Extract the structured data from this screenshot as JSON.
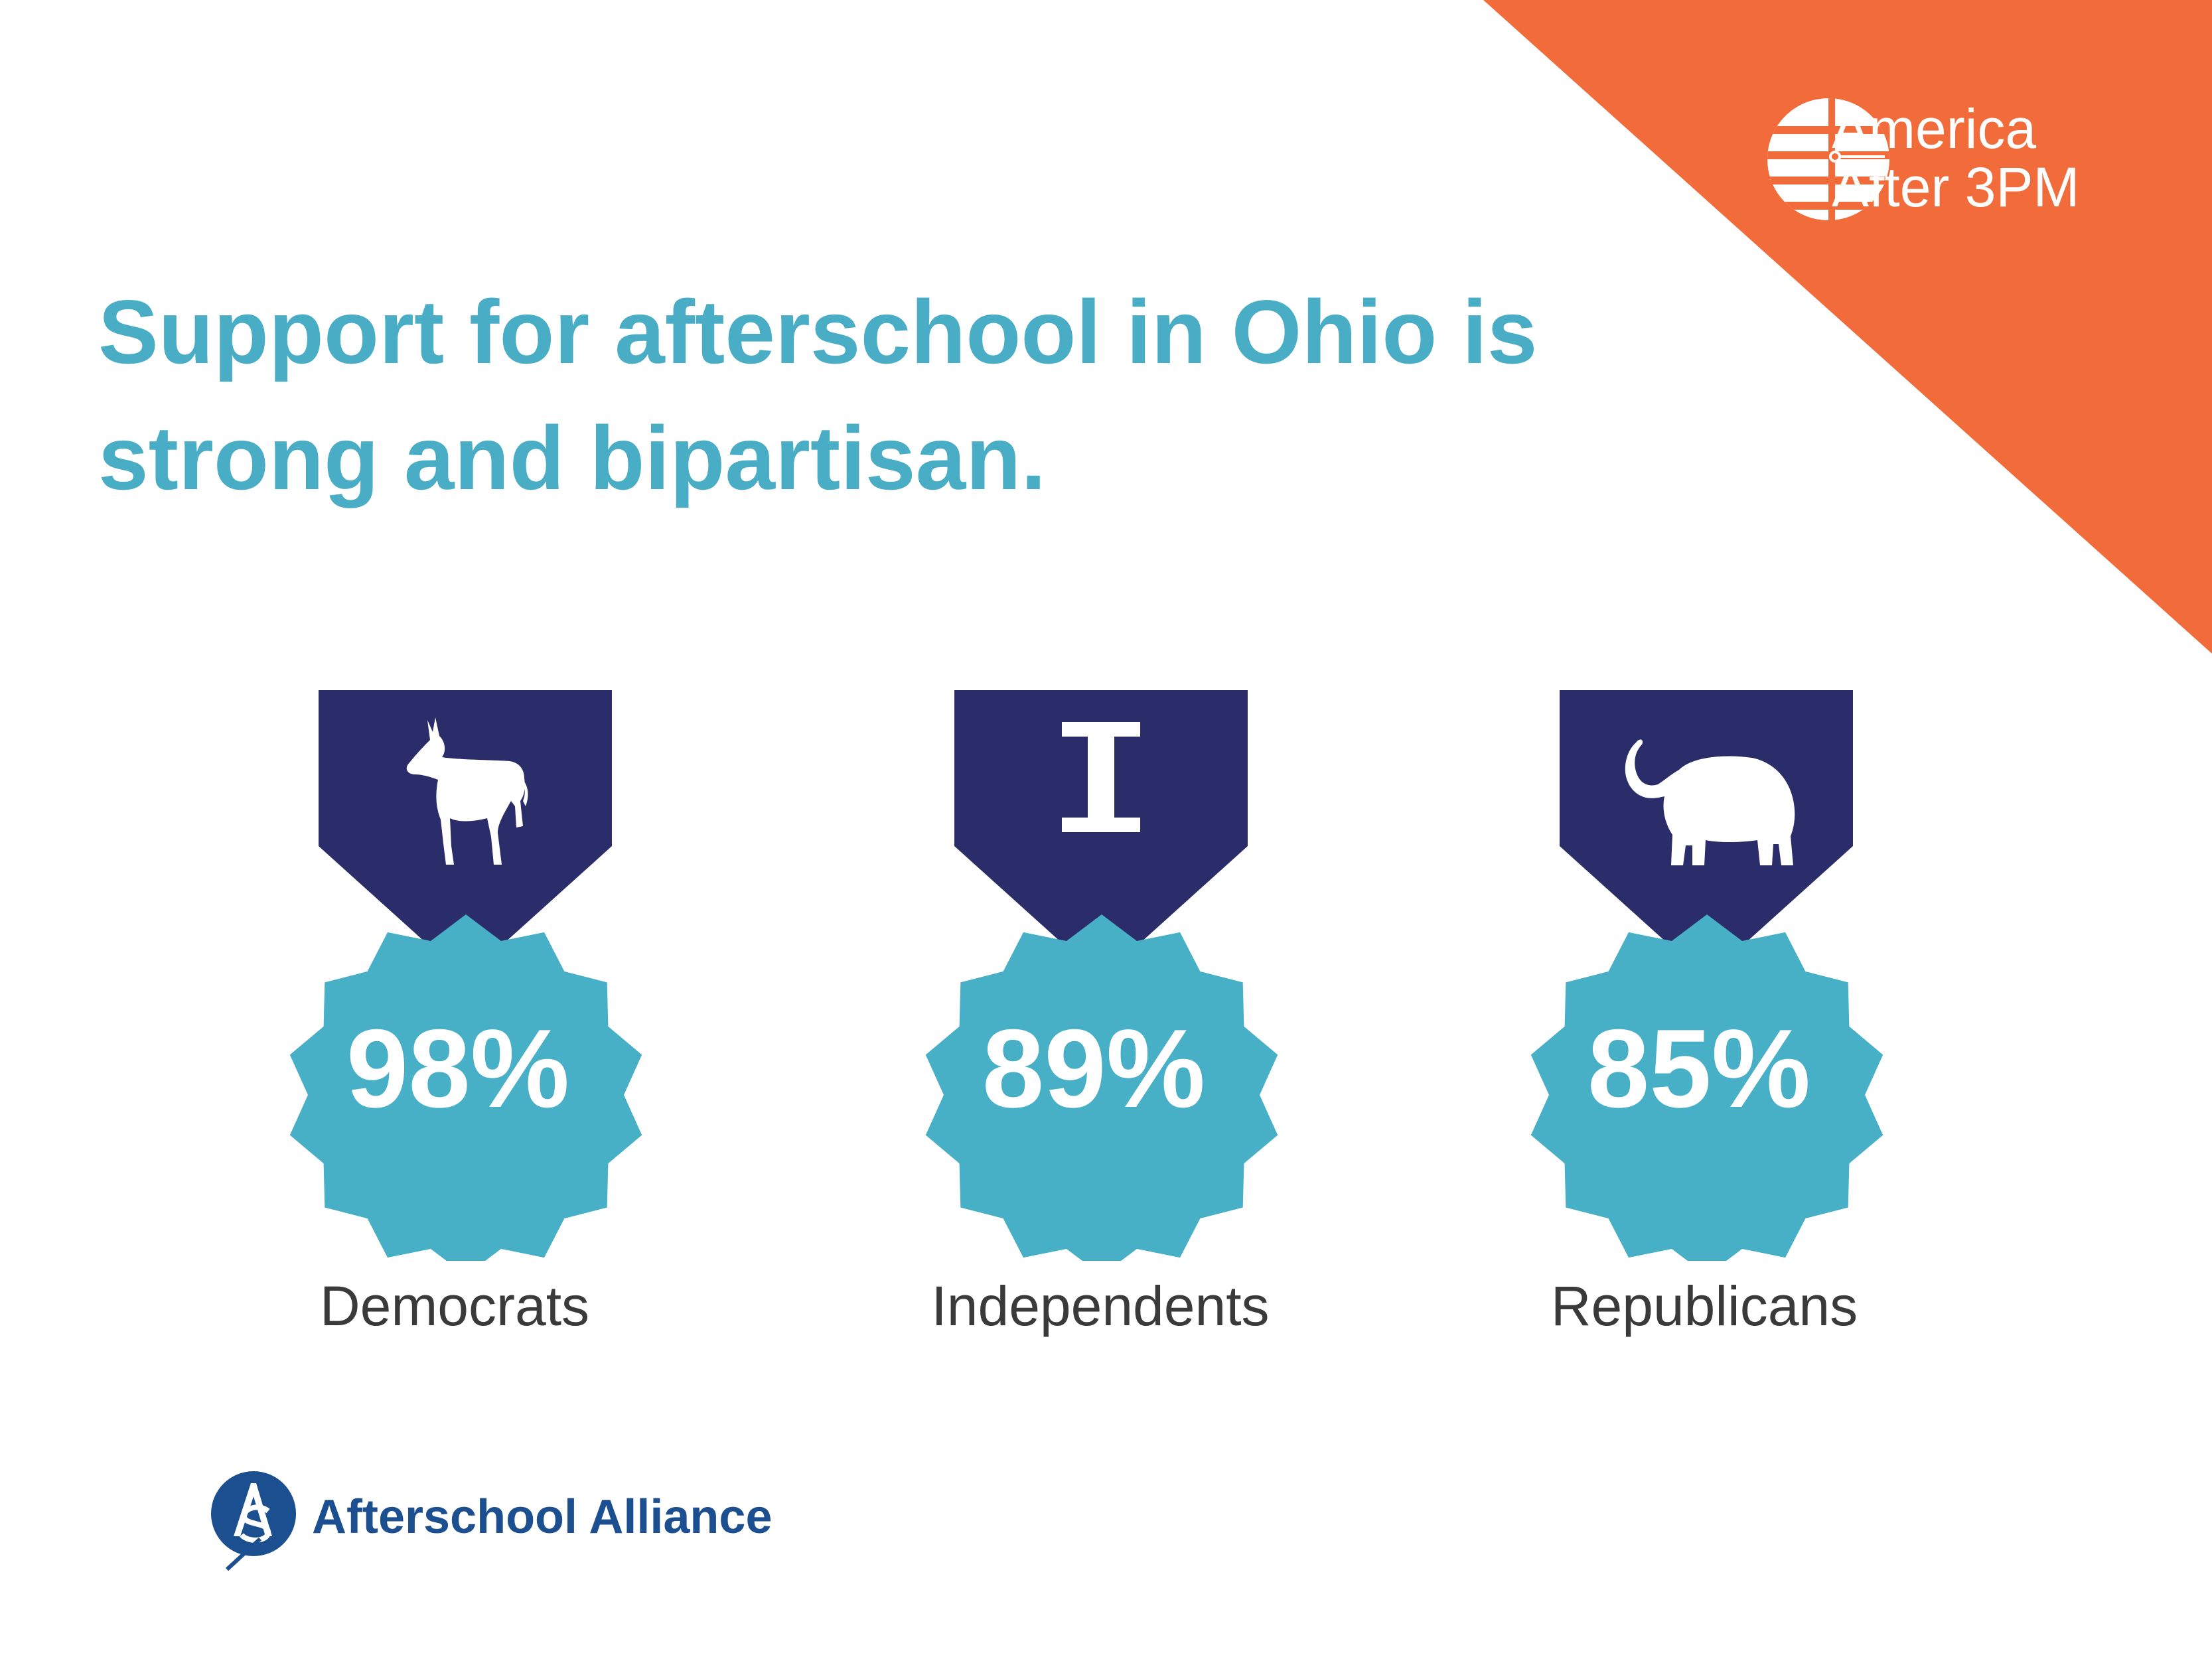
{
  "brand": {
    "line1": "America",
    "line2": "After 3PM",
    "accent_color": "#f26b3a"
  },
  "headline": {
    "line1": "Support for afterschool in Ohio is",
    "line2": "strong and bipartisan.",
    "color": "#4aadc6"
  },
  "medals": [
    {
      "value": "98%",
      "label": "Democrats",
      "icon": "donkey-icon"
    },
    {
      "value": "89%",
      "label": "Independents",
      "icon": "letter-i-icon"
    },
    {
      "value": "85%",
      "label": "Republicans",
      "icon": "elephant-icon"
    }
  ],
  "colors": {
    "ribbon": "#2b2d6b",
    "badge": "#47afc6",
    "label_text": "#3a3a3a"
  },
  "footer": {
    "organization": "Afterschool Alliance",
    "logo_icon": "afterschool-alliance-logo"
  }
}
